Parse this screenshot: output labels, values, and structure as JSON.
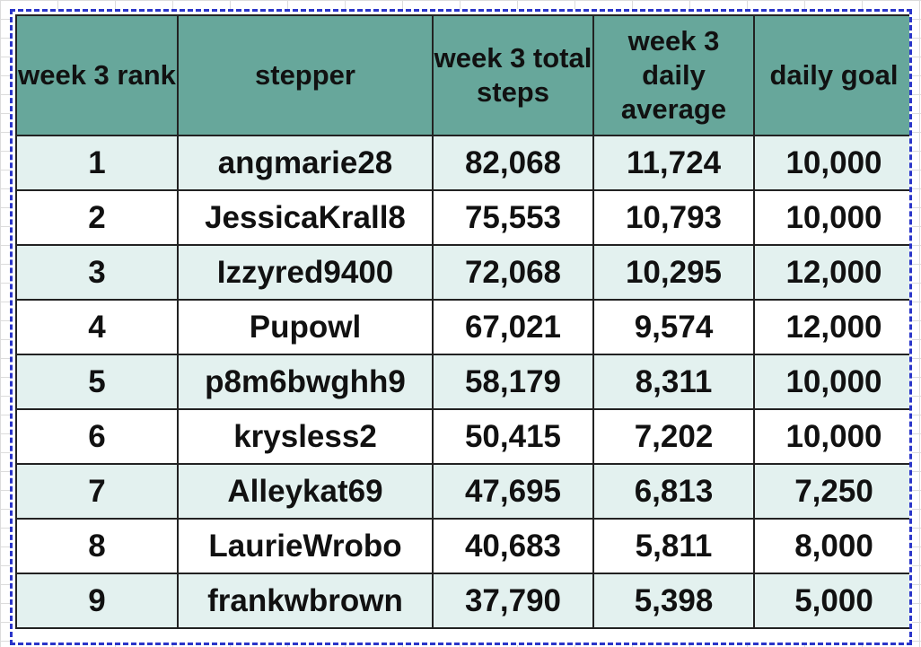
{
  "table": {
    "headers": [
      "week 3 rank",
      "stepper",
      "week 3 total steps",
      "week 3 daily average",
      "daily goal"
    ],
    "rows": [
      {
        "rank": "1",
        "stepper": "angmarie28",
        "total": "82,068",
        "average": "11,724",
        "goal": "10,000"
      },
      {
        "rank": "2",
        "stepper": "JessicaKrall8",
        "total": "75,553",
        "average": "10,793",
        "goal": "10,000"
      },
      {
        "rank": "3",
        "stepper": "Izzyred9400",
        "total": "72,068",
        "average": "10,295",
        "goal": "12,000"
      },
      {
        "rank": "4",
        "stepper": "Pupowl",
        "total": "67,021",
        "average": "9,574",
        "goal": "12,000"
      },
      {
        "rank": "5",
        "stepper": "p8m6bwghh9",
        "total": "58,179",
        "average": "8,311",
        "goal": "10,000"
      },
      {
        "rank": "6",
        "stepper": "krysless2",
        "total": "50,415",
        "average": "7,202",
        "goal": "10,000"
      },
      {
        "rank": "7",
        "stepper": "Alleykat69",
        "total": "47,695",
        "average": "6,813",
        "goal": "7,250"
      },
      {
        "rank": "8",
        "stepper": "LaurieWrobo",
        "total": "40,683",
        "average": "5,811",
        "goal": "8,000"
      },
      {
        "rank": "9",
        "stepper": "frankwbrown",
        "total": "37,790",
        "average": "5,398",
        "goal": "5,000"
      }
    ]
  },
  "colors": {
    "header_fill": "#67a79b",
    "band_fill": "#e3f1ef",
    "selection_border": "#2a35c9"
  }
}
